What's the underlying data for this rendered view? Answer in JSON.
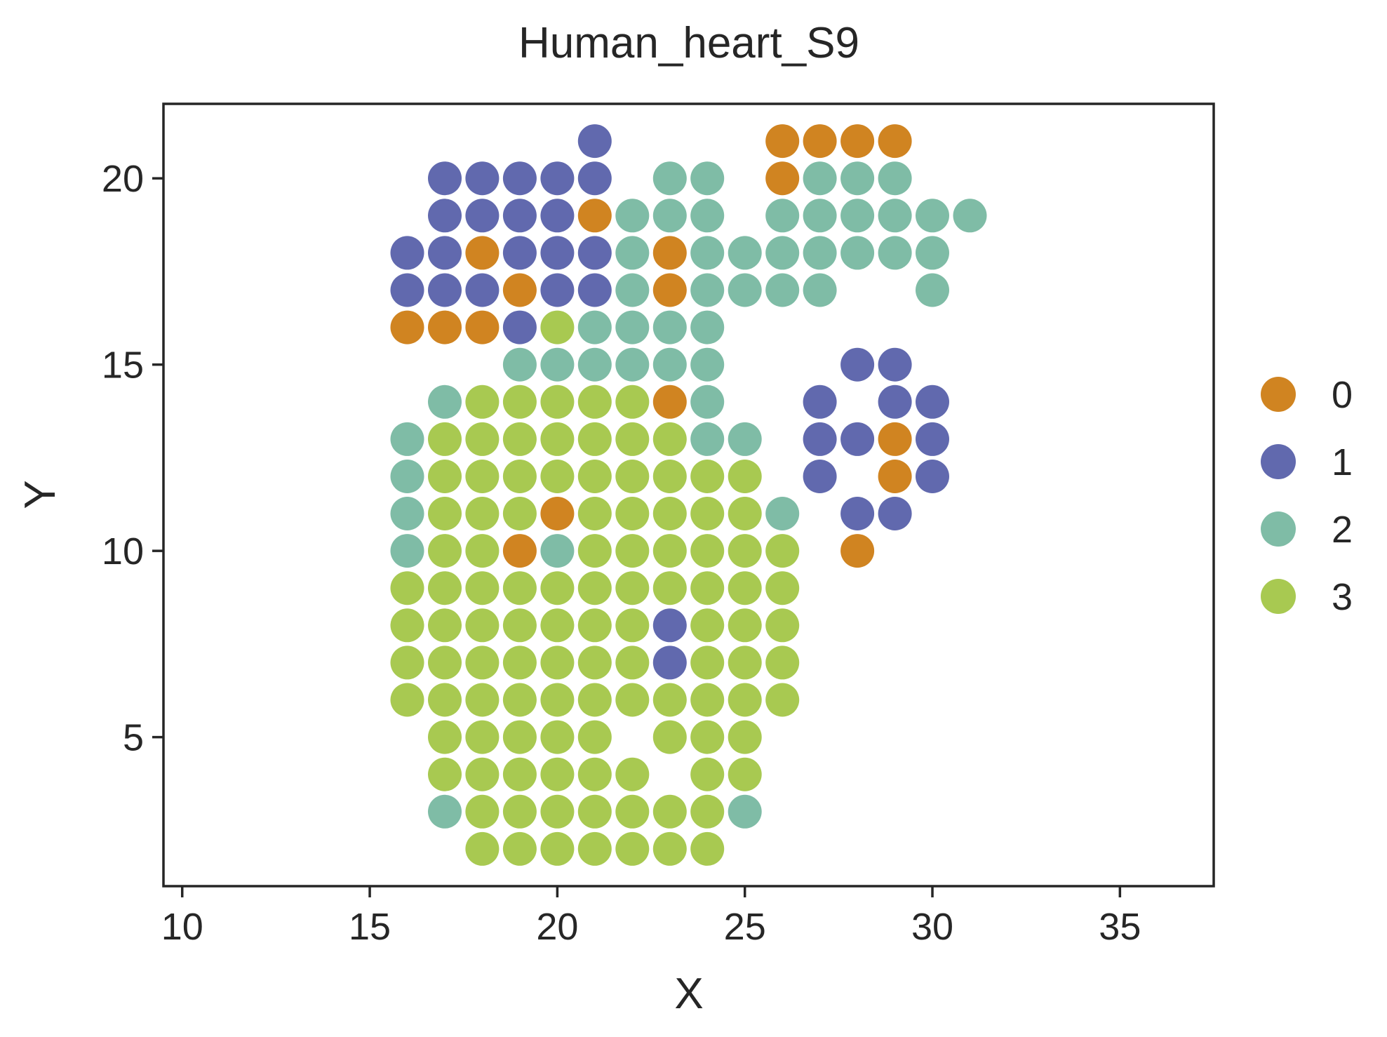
{
  "chart_data": {
    "type": "scatter",
    "title": "Human_heart_S9",
    "xlabel": "X",
    "ylabel": "Y",
    "xlim": [
      9.5,
      37.5
    ],
    "ylim": [
      1,
      22
    ],
    "xticks": [
      10,
      15,
      20,
      25,
      30,
      35
    ],
    "yticks": [
      5,
      10,
      15,
      20
    ],
    "grid": false,
    "legend": {
      "position": "right"
    },
    "series": [
      {
        "name": "0",
        "color": "#D08421",
        "points": [
          [
            26,
            21
          ],
          [
            27,
            21
          ],
          [
            28,
            21
          ],
          [
            29,
            21
          ],
          [
            26,
            20
          ],
          [
            21,
            19
          ],
          [
            18,
            18
          ],
          [
            23,
            18
          ],
          [
            19,
            17
          ],
          [
            23,
            17
          ],
          [
            16,
            16
          ],
          [
            17,
            16
          ],
          [
            18,
            16
          ],
          [
            23,
            14
          ],
          [
            29,
            13
          ],
          [
            29,
            12
          ],
          [
            20,
            11
          ],
          [
            19,
            10
          ],
          [
            28,
            10
          ]
        ]
      },
      {
        "name": "1",
        "color": "#6169AE",
        "points": [
          [
            21,
            21
          ],
          [
            17,
            20
          ],
          [
            18,
            20
          ],
          [
            19,
            20
          ],
          [
            20,
            20
          ],
          [
            21,
            20
          ],
          [
            17,
            19
          ],
          [
            18,
            19
          ],
          [
            19,
            19
          ],
          [
            20,
            19
          ],
          [
            16,
            18
          ],
          [
            17,
            18
          ],
          [
            19,
            18
          ],
          [
            20,
            18
          ],
          [
            21,
            18
          ],
          [
            16,
            17
          ],
          [
            17,
            17
          ],
          [
            18,
            17
          ],
          [
            20,
            17
          ],
          [
            21,
            17
          ],
          [
            19,
            16
          ],
          [
            28,
            15
          ],
          [
            29,
            15
          ],
          [
            27,
            14
          ],
          [
            29,
            14
          ],
          [
            30,
            14
          ],
          [
            27,
            13
          ],
          [
            28,
            13
          ],
          [
            30,
            13
          ],
          [
            27,
            12
          ],
          [
            30,
            12
          ],
          [
            28,
            11
          ],
          [
            29,
            11
          ],
          [
            23,
            8
          ],
          [
            23,
            7
          ]
        ]
      },
      {
        "name": "2",
        "color": "#7FBCA6",
        "points": [
          [
            23,
            20
          ],
          [
            24,
            20
          ],
          [
            27,
            20
          ],
          [
            28,
            20
          ],
          [
            29,
            20
          ],
          [
            22,
            19
          ],
          [
            23,
            19
          ],
          [
            24,
            19
          ],
          [
            26,
            19
          ],
          [
            27,
            19
          ],
          [
            28,
            19
          ],
          [
            29,
            19
          ],
          [
            30,
            19
          ],
          [
            31,
            19
          ],
          [
            22,
            18
          ],
          [
            24,
            18
          ],
          [
            25,
            18
          ],
          [
            26,
            18
          ],
          [
            27,
            18
          ],
          [
            28,
            18
          ],
          [
            29,
            18
          ],
          [
            30,
            18
          ],
          [
            22,
            17
          ],
          [
            24,
            17
          ],
          [
            25,
            17
          ],
          [
            26,
            17
          ],
          [
            27,
            17
          ],
          [
            30,
            17
          ],
          [
            21,
            16
          ],
          [
            22,
            16
          ],
          [
            23,
            16
          ],
          [
            24,
            16
          ],
          [
            19,
            15
          ],
          [
            20,
            15
          ],
          [
            21,
            15
          ],
          [
            22,
            15
          ],
          [
            23,
            15
          ],
          [
            24,
            15
          ],
          [
            17,
            14
          ],
          [
            24,
            14
          ],
          [
            16,
            13
          ],
          [
            24,
            13
          ],
          [
            25,
            13
          ],
          [
            16,
            12
          ],
          [
            16,
            11
          ],
          [
            26,
            11
          ],
          [
            16,
            10
          ],
          [
            20,
            10
          ],
          [
            17,
            3
          ],
          [
            25,
            3
          ]
        ]
      },
      {
        "name": "3",
        "color": "#A8C951",
        "points": [
          [
            20,
            16
          ],
          [
            18,
            14
          ],
          [
            19,
            14
          ],
          [
            20,
            14
          ],
          [
            21,
            14
          ],
          [
            22,
            14
          ],
          [
            17,
            13
          ],
          [
            18,
            13
          ],
          [
            19,
            13
          ],
          [
            20,
            13
          ],
          [
            21,
            13
          ],
          [
            22,
            13
          ],
          [
            23,
            13
          ],
          [
            17,
            12
          ],
          [
            18,
            12
          ],
          [
            19,
            12
          ],
          [
            20,
            12
          ],
          [
            21,
            12
          ],
          [
            22,
            12
          ],
          [
            23,
            12
          ],
          [
            24,
            12
          ],
          [
            25,
            12
          ],
          [
            17,
            11
          ],
          [
            18,
            11
          ],
          [
            19,
            11
          ],
          [
            21,
            11
          ],
          [
            22,
            11
          ],
          [
            23,
            11
          ],
          [
            24,
            11
          ],
          [
            25,
            11
          ],
          [
            17,
            10
          ],
          [
            18,
            10
          ],
          [
            21,
            10
          ],
          [
            22,
            10
          ],
          [
            23,
            10
          ],
          [
            24,
            10
          ],
          [
            25,
            10
          ],
          [
            26,
            10
          ],
          [
            16,
            9
          ],
          [
            17,
            9
          ],
          [
            18,
            9
          ],
          [
            19,
            9
          ],
          [
            20,
            9
          ],
          [
            21,
            9
          ],
          [
            22,
            9
          ],
          [
            23,
            9
          ],
          [
            24,
            9
          ],
          [
            25,
            9
          ],
          [
            26,
            9
          ],
          [
            16,
            8
          ],
          [
            17,
            8
          ],
          [
            18,
            8
          ],
          [
            19,
            8
          ],
          [
            20,
            8
          ],
          [
            21,
            8
          ],
          [
            22,
            8
          ],
          [
            24,
            8
          ],
          [
            25,
            8
          ],
          [
            26,
            8
          ],
          [
            16,
            7
          ],
          [
            17,
            7
          ],
          [
            18,
            7
          ],
          [
            19,
            7
          ],
          [
            20,
            7
          ],
          [
            21,
            7
          ],
          [
            22,
            7
          ],
          [
            24,
            7
          ],
          [
            25,
            7
          ],
          [
            26,
            7
          ],
          [
            16,
            6
          ],
          [
            17,
            6
          ],
          [
            18,
            6
          ],
          [
            19,
            6
          ],
          [
            20,
            6
          ],
          [
            21,
            6
          ],
          [
            22,
            6
          ],
          [
            23,
            6
          ],
          [
            24,
            6
          ],
          [
            25,
            6
          ],
          [
            26,
            6
          ],
          [
            17,
            5
          ],
          [
            18,
            5
          ],
          [
            19,
            5
          ],
          [
            20,
            5
          ],
          [
            21,
            5
          ],
          [
            23,
            5
          ],
          [
            24,
            5
          ],
          [
            25,
            5
          ],
          [
            17,
            4
          ],
          [
            18,
            4
          ],
          [
            19,
            4
          ],
          [
            20,
            4
          ],
          [
            21,
            4
          ],
          [
            22,
            4
          ],
          [
            24,
            4
          ],
          [
            25,
            4
          ],
          [
            18,
            3
          ],
          [
            19,
            3
          ],
          [
            20,
            3
          ],
          [
            21,
            3
          ],
          [
            22,
            3
          ],
          [
            23,
            3
          ],
          [
            24,
            3
          ],
          [
            18,
            2
          ],
          [
            19,
            2
          ],
          [
            20,
            2
          ],
          [
            21,
            2
          ],
          [
            22,
            2
          ],
          [
            23,
            2
          ],
          [
            24,
            2
          ]
        ]
      }
    ]
  }
}
